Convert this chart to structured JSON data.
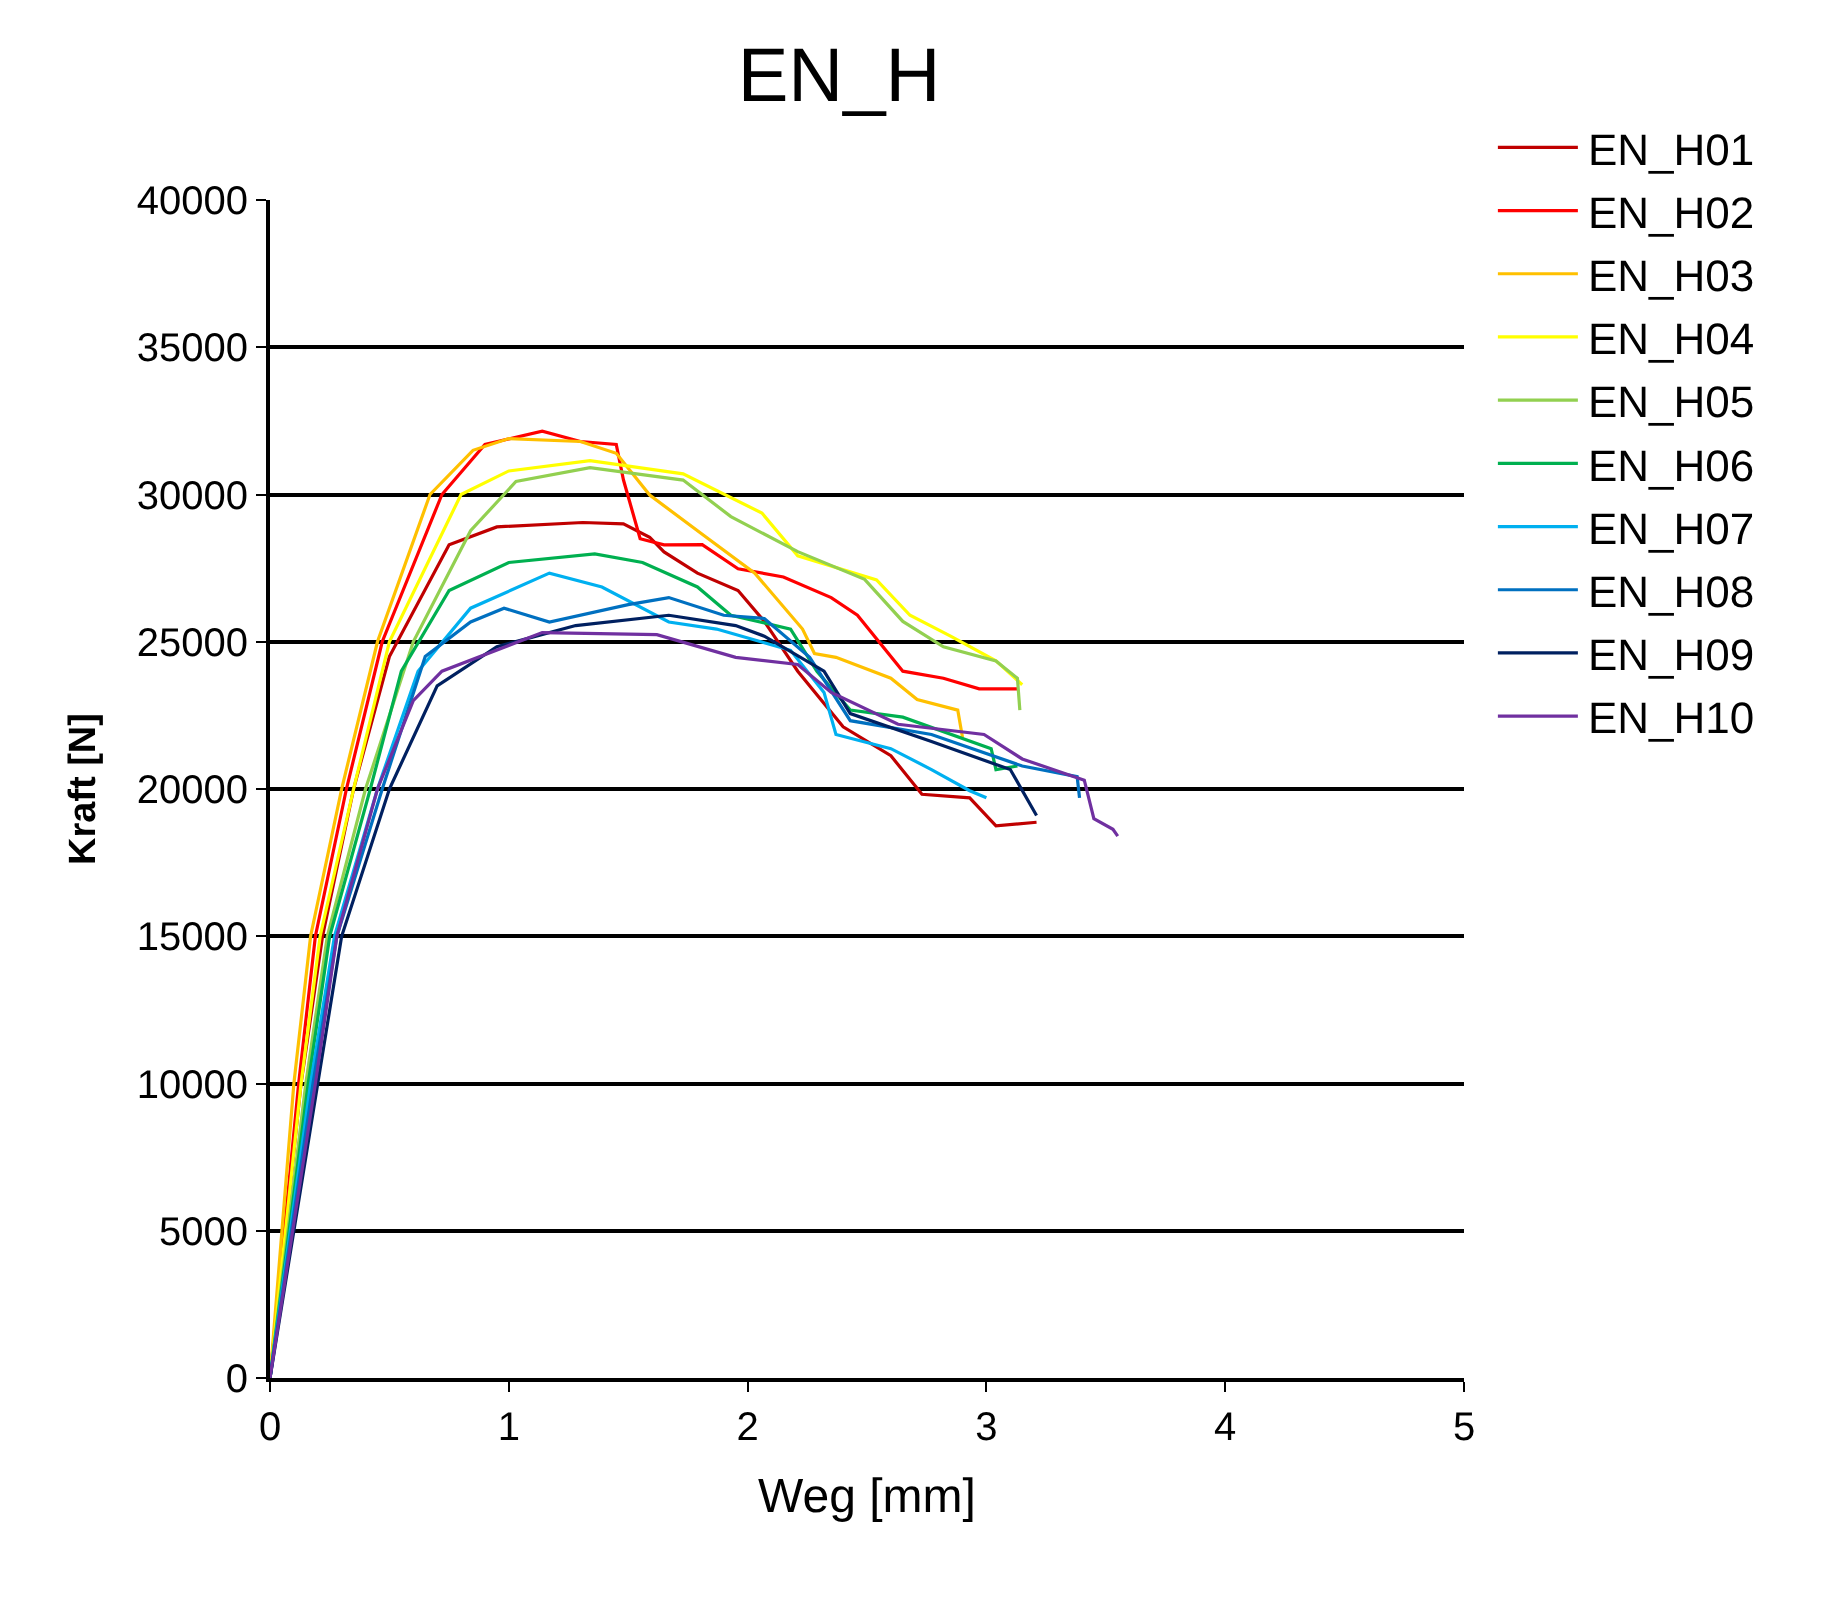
{
  "chart_data": {
    "type": "line",
    "title": "EN_H",
    "xlabel": "Weg [mm]",
    "ylabel": "Kraft [N]",
    "xlim": [
      0,
      5
    ],
    "xticks": [
      0,
      1,
      2,
      3,
      4,
      5
    ],
    "ylim": [
      0,
      40000
    ],
    "yticks": [
      0,
      5000,
      10000,
      15000,
      20000,
      25000,
      30000,
      35000,
      40000
    ],
    "grid": "y",
    "legend": "right",
    "marker": "none",
    "line_style": "solid",
    "series": [
      {
        "name": "EN_H01",
        "color": "#c00000",
        "x": [
          0,
          0.13,
          0.22,
          0.35,
          0.5,
          0.75,
          0.95,
          1.31,
          1.48,
          1.59,
          1.65,
          1.79,
          1.96,
          2.07,
          2.21,
          2.4,
          2.6,
          2.73,
          2.93,
          3.04,
          3.21
        ],
        "values": [
          0,
          10000,
          15000,
          20000,
          24500,
          28290,
          28900,
          29050,
          29000,
          28550,
          28050,
          27330,
          26740,
          25690,
          24000,
          22110,
          21130,
          19820,
          19700,
          18750,
          18870
        ]
      },
      {
        "name": "EN_H02",
        "color": "#ff0000",
        "x": [
          0,
          0.12,
          0.19,
          0.32,
          0.47,
          0.72,
          0.9,
          1.14,
          1.3,
          1.45,
          1.48,
          1.55,
          1.65,
          1.81,
          1.96,
          2.15,
          2.35,
          2.46,
          2.65,
          2.82,
          2.97,
          3.13
        ],
        "values": [
          0,
          10000,
          15000,
          20000,
          25000,
          30000,
          31700,
          32150,
          31800,
          31700,
          30500,
          28500,
          28290,
          28300,
          27480,
          27200,
          26500,
          25900,
          24000,
          23760,
          23400,
          23400
        ]
      },
      {
        "name": "EN_H03",
        "color": "#ffc000",
        "x": [
          0,
          0.1,
          0.17,
          0.3,
          0.45,
          0.67,
          0.85,
          1.0,
          1.3,
          1.45,
          1.59,
          1.81,
          2.03,
          2.23,
          2.28,
          2.37,
          2.6,
          2.71,
          2.88,
          2.9
        ],
        "values": [
          0,
          10000,
          15000,
          20000,
          25000,
          30000,
          31500,
          31900,
          31800,
          31400,
          29980,
          28650,
          27330,
          25430,
          24600,
          24470,
          23760,
          23040,
          22680,
          21750
        ]
      },
      {
        "name": "EN_H04",
        "color": "#ffff00",
        "x": [
          0,
          0.13,
          0.21,
          0.35,
          0.5,
          0.8,
          1.0,
          1.34,
          1.73,
          2.06,
          2.21,
          2.54,
          2.68,
          2.85,
          3.04,
          3.15
        ],
        "values": [
          0,
          10000,
          15000,
          20000,
          25000,
          30000,
          30800,
          31150,
          30700,
          29370,
          27920,
          27100,
          25900,
          25190,
          24350,
          23540
        ]
      },
      {
        "name": "EN_H05",
        "color": "#92d050",
        "x": [
          0,
          0.15,
          0.24,
          0.4,
          0.6,
          0.84,
          1.03,
          1.34,
          1.73,
          1.93,
          2.21,
          2.49,
          2.65,
          2.82,
          3.04,
          3.13,
          3.14
        ],
        "values": [
          0,
          10000,
          15000,
          20000,
          25000,
          28770,
          30440,
          30910,
          30490,
          29250,
          28060,
          27120,
          25690,
          24830,
          24350,
          23760,
          22680
        ]
      },
      {
        "name": "EN_H06",
        "color": "#00b050",
        "x": [
          0,
          0.16,
          0.25,
          0.42,
          0.55,
          0.75,
          1.0,
          1.36,
          1.56,
          1.79,
          1.93,
          2.18,
          2.29,
          2.43,
          2.65,
          3.02,
          3.04,
          3.13
        ],
        "values": [
          0,
          10000,
          15000,
          20000,
          24000,
          26740,
          27690,
          27980,
          27690,
          26860,
          25900,
          25430,
          24000,
          22680,
          22440,
          21370,
          20660,
          20780
        ]
      },
      {
        "name": "EN_H07",
        "color": "#00b0f0",
        "x": [
          0,
          0.17,
          0.27,
          0.45,
          0.62,
          0.84,
          1.17,
          1.39,
          1.67,
          1.87,
          2.18,
          2.32,
          2.37,
          2.6,
          2.77,
          2.93,
          3.0
        ],
        "values": [
          0,
          10000,
          15000,
          20000,
          24000,
          26140,
          27330,
          26860,
          25670,
          25430,
          24710,
          23280,
          21850,
          21370,
          20660,
          19940,
          19700
        ]
      },
      {
        "name": "EN_H08",
        "color": "#0070c0",
        "x": [
          0,
          0.18,
          0.28,
          0.47,
          0.65,
          0.84,
          0.98,
          1.17,
          1.5,
          1.67,
          1.9,
          2.07,
          2.26,
          2.43,
          2.77,
          3.15,
          3.38,
          3.39
        ],
        "values": [
          0,
          10000,
          15000,
          20000,
          24500,
          25670,
          26140,
          25670,
          26260,
          26500,
          25900,
          25790,
          24470,
          22320,
          21850,
          20780,
          20420,
          19700
        ]
      },
      {
        "name": "EN_H09",
        "color": "#002060",
        "x": [
          0,
          0.2,
          0.3,
          0.5,
          0.7,
          0.95,
          1.28,
          1.67,
          1.95,
          2.07,
          2.32,
          2.43,
          2.77,
          3.1,
          3.21
        ],
        "values": [
          0,
          10000,
          15000,
          20000,
          23500,
          24830,
          25550,
          25900,
          25550,
          25190,
          24000,
          22560,
          21610,
          20660,
          19100
        ]
      },
      {
        "name": "EN_H10",
        "color": "#7030a0",
        "x": [
          0,
          0.19,
          0.28,
          0.45,
          0.6,
          0.72,
          1.14,
          1.62,
          1.95,
          2.21,
          2.35,
          2.63,
          2.99,
          3.15,
          3.41,
          3.45,
          3.53,
          3.55
        ],
        "values": [
          0,
          10000,
          15000,
          20000,
          23000,
          24000,
          25310,
          25240,
          24470,
          24230,
          23280,
          22200,
          21850,
          21020,
          20300,
          18990,
          18630,
          18400
        ]
      }
    ]
  }
}
